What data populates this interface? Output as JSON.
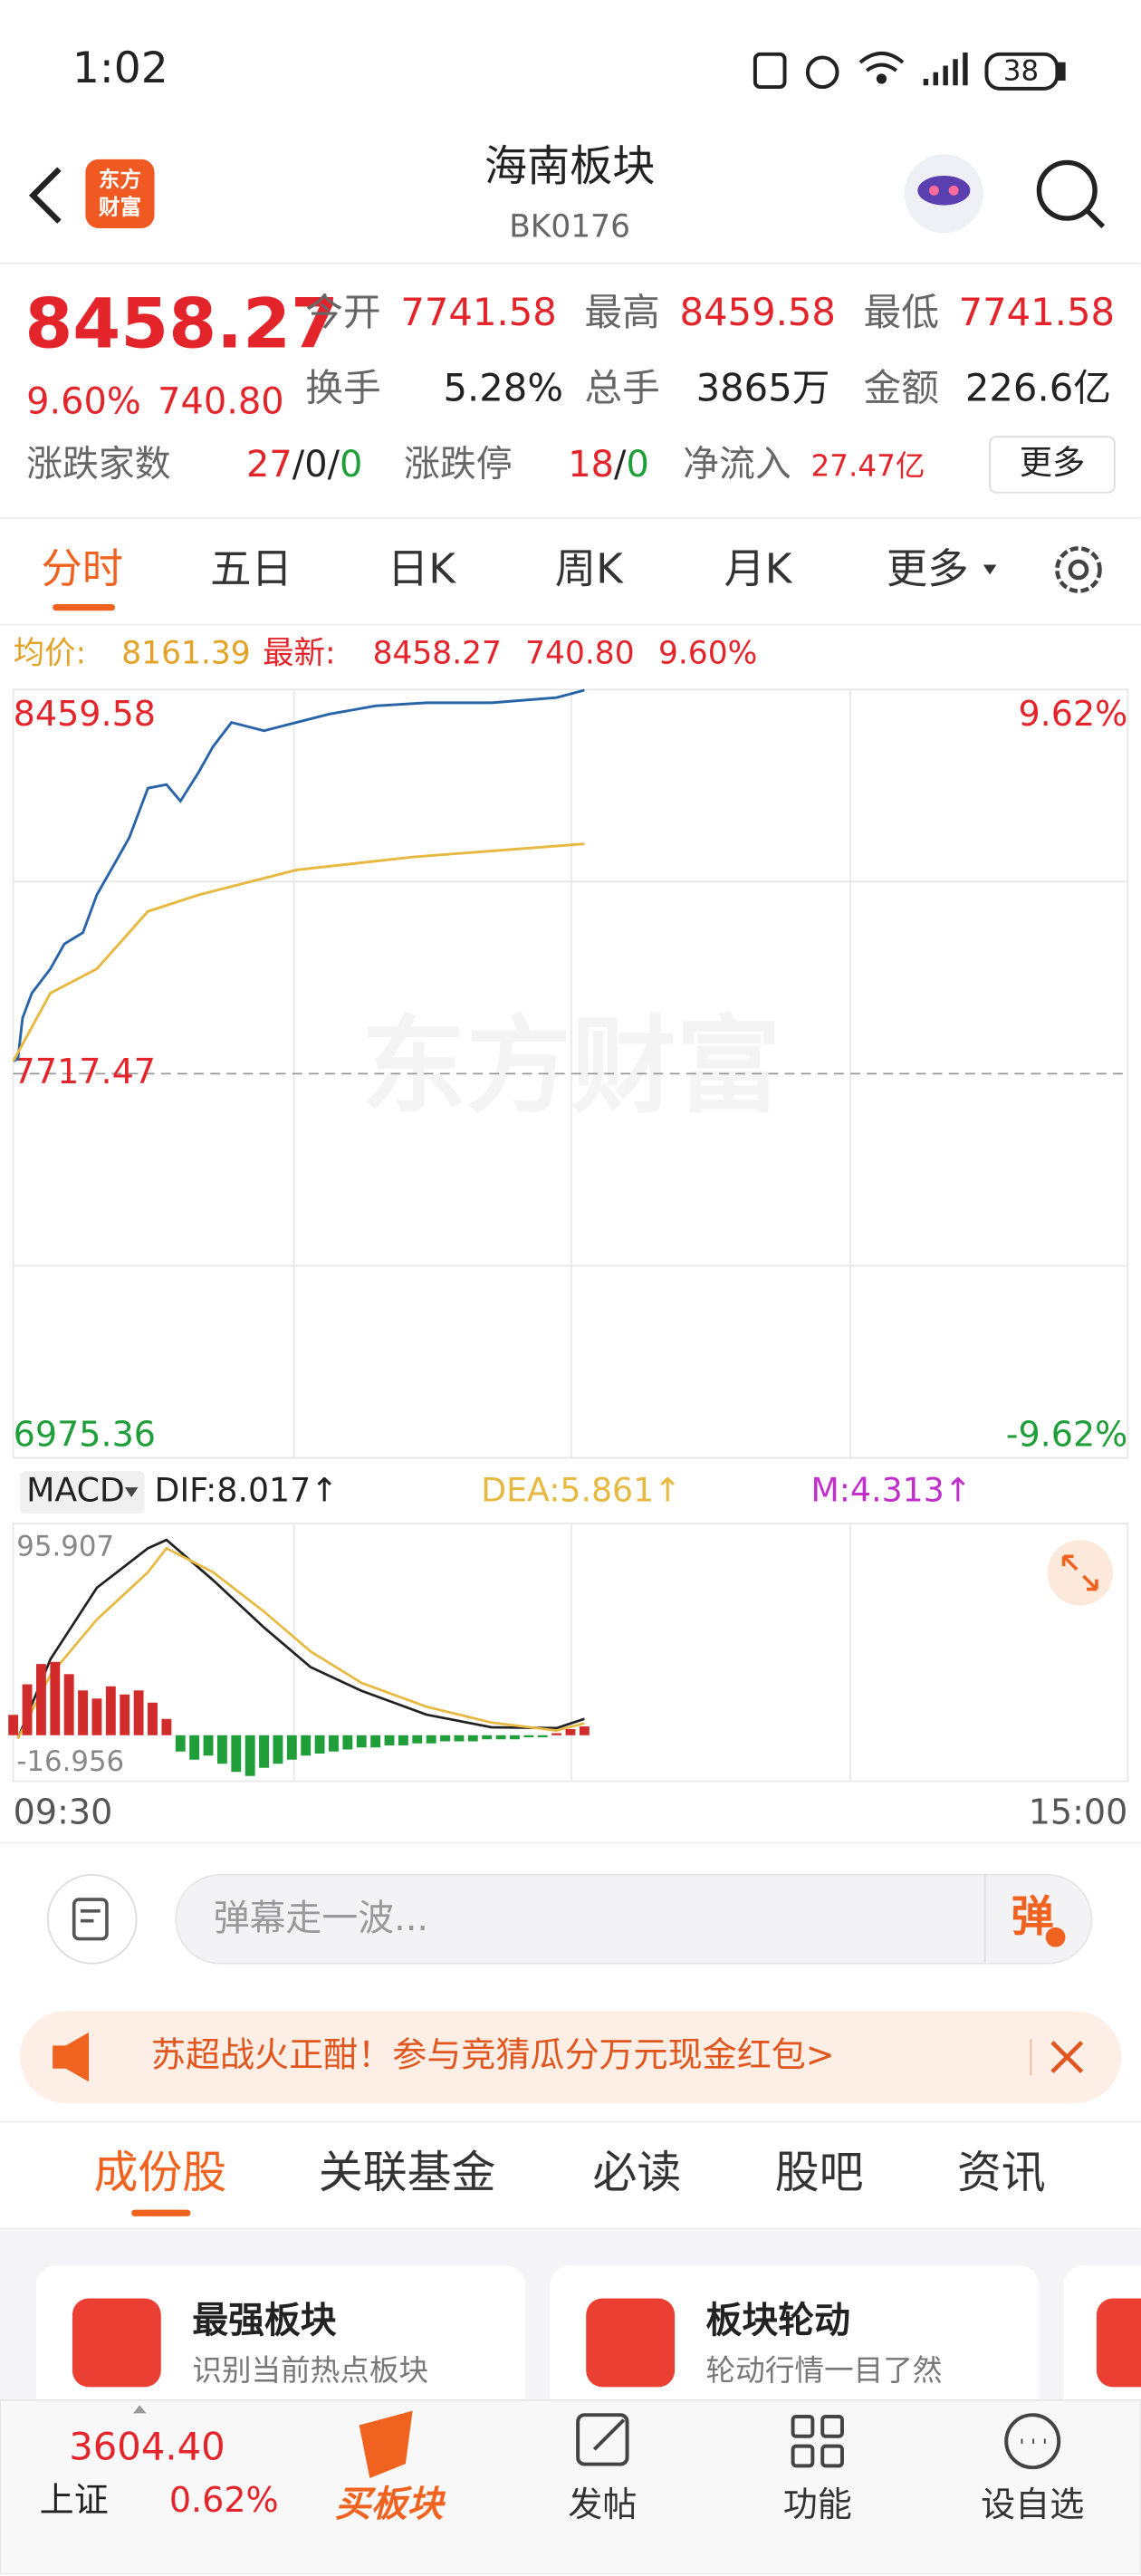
{
  "status_bar": {
    "time": "1:02",
    "battery": "38"
  },
  "header": {
    "logo": [
      "东方",
      "财富"
    ],
    "title": "海南板块",
    "code": "BK0176"
  },
  "quote": {
    "price": "8458.27",
    "change_pct": "9.60%",
    "change": "740.80",
    "fields": [
      {
        "label": "今开",
        "value": "7741.58"
      },
      {
        "label": "最高",
        "value": "8459.58"
      },
      {
        "label": "最低",
        "value": "7741.58"
      },
      {
        "label": "换手",
        "value": "5.28%"
      },
      {
        "label": "总手",
        "value": "3865万"
      },
      {
        "label": "金额",
        "value": "226.6亿"
      }
    ],
    "separator": "/",
    "breadth": {
      "label": "涨跌家数",
      "up": "27",
      "flat": "0",
      "down": "0"
    },
    "limits": {
      "label": "涨跌停",
      "up": "18",
      "down": "0"
    },
    "net_inflow": {
      "label": "净流入",
      "value": "27.47亿"
    },
    "more": "更多"
  },
  "period_tabs": {
    "items": [
      "分时",
      "五日",
      "日K",
      "周K",
      "月K",
      "更多"
    ],
    "selected": 0
  },
  "info_bar": {
    "avg_label": "均价:",
    "avg": "8161.39",
    "last_label": "最新:",
    "last": "8458.27",
    "change": "740.80",
    "change_pct": "9.60%"
  },
  "watermark": "东方财富",
  "chart_data": [
    {
      "type": "line",
      "xlim": [
        0,
        240
      ],
      "xticks": [
        {
          "value": 0,
          "label": "09:30"
        },
        {
          "value": 240,
          "label": "15:00"
        }
      ],
      "ylim": [
        6975.36,
        8459.58
      ],
      "yticks": [
        8459.58,
        7717.47,
        6975.36
      ],
      "y2lim": [
        -9.62,
        9.62
      ],
      "y2ticks": [
        {
          "value": 9.62,
          "label": "9.62%"
        },
        {
          "value": -9.62,
          "label": "-9.62%"
        }
      ],
      "series": [
        {
          "color": "#2a64a8",
          "x": [
            0,
            1,
            2,
            4,
            8,
            11,
            15,
            18,
            22,
            25,
            29,
            33,
            36,
            40,
            43,
            47,
            54,
            61,
            68,
            78,
            89,
            103,
            117,
            123
          ],
          "values": [
            7741.58,
            7746,
            7825,
            7873,
            7920,
            7968,
            7990,
            8063,
            8126,
            8174,
            8269,
            8276,
            8244,
            8301,
            8349,
            8396,
            8380,
            8396,
            8412,
            8428,
            8434,
            8434,
            8444,
            8458.27
          ]
        },
        {
          "color": "#e8b940",
          "x": [
            0,
            8,
            18,
            29,
            40,
            61,
            86,
            123
          ],
          "values": [
            7741.58,
            7873,
            7920,
            8031,
            8063,
            8111,
            8136,
            8161.39
          ]
        }
      ]
    },
    {
      "type": "macd",
      "indicator": "MACD",
      "xlim": [
        0,
        240
      ],
      "ylim": [
        -16.956,
        95.907
      ],
      "yticks": [
        95.907,
        -16.956
      ],
      "series": [
        {
          "name": "DIF:8.017↑",
          "type": "line",
          "color": "#222222",
          "x": [
            1,
            8,
            18,
            29,
            33,
            43,
            54,
            64,
            75,
            89,
            103,
            117,
            123
          ],
          "values": [
            -1.6,
            37.3,
            72.4,
            91.8,
            95.907,
            76.2,
            52.9,
            33.5,
            21.8,
            10.1,
            3.9,
            3.5,
            8.017
          ]
        },
        {
          "name": "DEA:5.861↑",
          "type": "line",
          "color": "#e8b940",
          "x": [
            1,
            8,
            18,
            29,
            33,
            43,
            54,
            64,
            75,
            89,
            103,
            117,
            123
          ],
          "values": [
            -1.6,
            29.6,
            56.8,
            80,
            91.8,
            80.1,
            60.7,
            41.2,
            25.7,
            14.0,
            6.2,
            2.3,
            5.861
          ]
        },
        {
          "name": "M:4.313↑",
          "type": "bar",
          "color": "#d22b2b",
          "negative_color": "#1f9e3a",
          "legend_color": "#c030c8",
          "x": [
            0,
            3,
            6,
            9,
            12,
            15,
            18,
            21,
            24,
            27,
            30,
            33,
            36,
            39,
            42,
            45,
            48,
            51,
            54,
            57,
            60,
            63,
            66,
            69,
            72,
            75,
            78,
            81,
            84,
            87,
            90,
            93,
            96,
            99,
            102,
            105,
            108,
            111,
            114,
            117,
            120,
            123
          ],
          "values": [
            10,
            25,
            35,
            36,
            30,
            22,
            18,
            24,
            20,
            22,
            16,
            8,
            -8,
            -12,
            -10,
            -14,
            -18,
            -20,
            -16,
            -14,
            -12,
            -10,
            -9,
            -8,
            -7,
            -6,
            -6,
            -5,
            -5,
            -4,
            -4,
            -3,
            -3,
            -3,
            -2,
            -2,
            -2,
            -1,
            -1,
            1,
            3,
            4.313
          ]
        }
      ]
    }
  ],
  "comment": {
    "placeholder": "弹幕走一波...",
    "button": "弹"
  },
  "banner": {
    "text": "苏超战火正酣！参与竞猜瓜分万元现金红包>"
  },
  "content_tabs": {
    "items": [
      "成份股",
      "关联基金",
      "必读",
      "股吧",
      "资讯"
    ],
    "selected": 0
  },
  "cards": [
    {
      "title": "最强板块",
      "subtitle": "识别当前热点板块"
    },
    {
      "title": "板块轮动",
      "subtitle": "轮动行情一目了然"
    }
  ],
  "bottom_nav": {
    "index": {
      "value": "3604.40",
      "name": "上证",
      "change": "0.62%"
    },
    "items": [
      "买板块",
      "发帖",
      "功能",
      "设自选"
    ],
    "selected": 0
  }
}
